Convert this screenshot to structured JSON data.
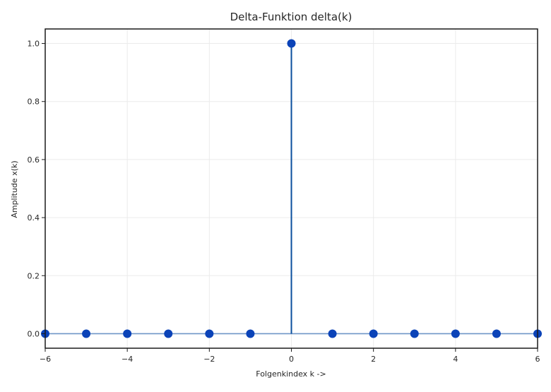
{
  "chart_data": {
    "type": "stem",
    "title": "Delta-Funktion delta(k)",
    "xlabel": "Folgenkindex k ->",
    "ylabel": "Amplitude x(k)",
    "xlim": [
      -6,
      6
    ],
    "ylim": [
      -0.05,
      1.05
    ],
    "xticks": [
      -6,
      -4,
      -2,
      0,
      2,
      4,
      6
    ],
    "xtick_labels": [
      "−6",
      "−4",
      "−2",
      "0",
      "2",
      "4",
      "6"
    ],
    "yticks": [
      0.0,
      0.2,
      0.4,
      0.6,
      0.8,
      1.0
    ],
    "ytick_labels": [
      "0.0",
      "0.2",
      "0.4",
      "0.6",
      "0.8",
      "1.0"
    ],
    "grid": true,
    "baseline": 0,
    "series": [
      {
        "x": [
          -6,
          -5,
          -4,
          -3,
          -2,
          -1,
          0,
          1,
          2,
          3,
          4,
          5,
          6
        ],
        "y": [
          0,
          0,
          0,
          0,
          0,
          0,
          1,
          0,
          0,
          0,
          0,
          0,
          0
        ]
      }
    ],
    "colors": {
      "marker": "#0b43b8",
      "stem": "#0a4f9e",
      "baseline": "#6f96c8",
      "grid": "#ebebeb",
      "frame": "#1a1a1a"
    }
  }
}
